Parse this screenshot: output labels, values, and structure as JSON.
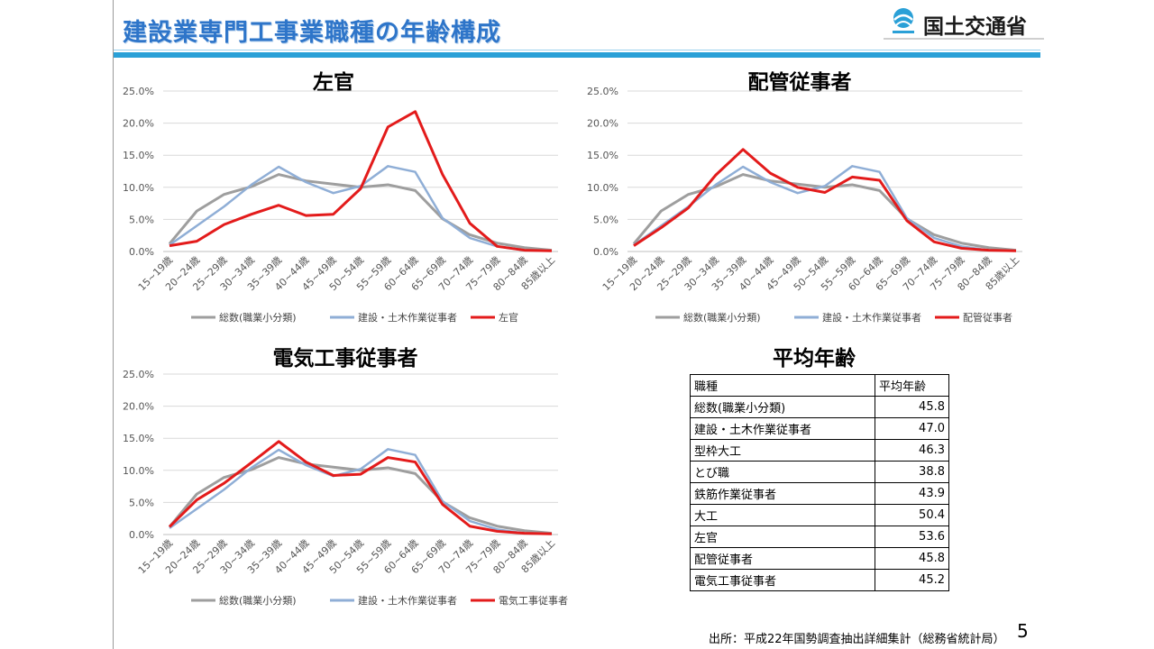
{
  "header": {
    "title": "建設業専門工事業職種の年齢構成",
    "logo_text": "国土交通省"
  },
  "colors": {
    "total": "#9e9e9e",
    "construction": "#8faed6",
    "occupation": "#e31b1b",
    "title_blue": "#2e75c9",
    "rule_blue": "#2aa0d7"
  },
  "chart_data": [
    {
      "type": "line",
      "title": "左官",
      "categories": [
        "15~19歳",
        "20~24歳",
        "25~29歳",
        "30~34歳",
        "35~39歳",
        "40~44歳",
        "45~49歳",
        "50~54歳",
        "55~59歳",
        "60~64歳",
        "65~69歳",
        "70~74歳",
        "75~79歳",
        "80~84歳",
        "85歳以上"
      ],
      "yticks": [
        "0.0%",
        "5.0%",
        "10.0%",
        "15.0%",
        "20.0%",
        "25.0%"
      ],
      "ylim": [
        0,
        25
      ],
      "series": [
        {
          "name": "総数(職業小分類)",
          "values": [
            1.2,
            6.3,
            8.9,
            10.1,
            12.0,
            11.0,
            10.5,
            10.0,
            10.4,
            9.5,
            5.1,
            2.6,
            1.3,
            0.6,
            0.2
          ]
        },
        {
          "name": "建設・土木作業従事者",
          "values": [
            1.0,
            4.0,
            7.0,
            10.4,
            13.2,
            10.8,
            9.1,
            10.2,
            13.3,
            12.4,
            5.2,
            2.1,
            0.8,
            0.2,
            0.1
          ]
        },
        {
          "name": "左官",
          "values": [
            0.9,
            1.6,
            4.2,
            5.8,
            7.2,
            5.6,
            5.8,
            9.8,
            19.4,
            21.8,
            12.0,
            4.4,
            0.8,
            0.2,
            0.1
          ]
        }
      ]
    },
    {
      "type": "line",
      "title": "配管従事者",
      "categories": [
        "15~19歳",
        "20~24歳",
        "25~29歳",
        "30~34歳",
        "35~39歳",
        "40~44歳",
        "45~49歳",
        "50~54歳",
        "55~59歳",
        "60~64歳",
        "65~69歳",
        "70~74歳",
        "75~79歳",
        "80~84歳",
        "85歳以上"
      ],
      "yticks": [
        "0.0%",
        "5.0%",
        "10.0%",
        "15.0%",
        "20.0%",
        "25.0%"
      ],
      "ylim": [
        0,
        25
      ],
      "series": [
        {
          "name": "総数(職業小分類)",
          "values": [
            1.2,
            6.3,
            8.9,
            10.1,
            12.0,
            11.0,
            10.5,
            10.0,
            10.4,
            9.5,
            5.1,
            2.6,
            1.3,
            0.6,
            0.2
          ]
        },
        {
          "name": "建設・土木作業従事者",
          "values": [
            1.0,
            4.0,
            7.0,
            10.4,
            13.2,
            10.8,
            9.1,
            10.2,
            13.3,
            12.4,
            5.2,
            2.1,
            0.8,
            0.2,
            0.1
          ]
        },
        {
          "name": "配管従事者",
          "values": [
            0.9,
            3.7,
            6.8,
            11.9,
            15.9,
            12.2,
            10.0,
            9.2,
            11.6,
            11.1,
            4.8,
            1.5,
            0.5,
            0.2,
            0.1
          ]
        }
      ]
    },
    {
      "type": "line",
      "title": "電気工事従事者",
      "categories": [
        "15~19歳",
        "20~24歳",
        "25~29歳",
        "30~34歳",
        "35~39歳",
        "40~44歳",
        "45~49歳",
        "50~54歳",
        "55~59歳",
        "60~64歳",
        "65~69歳",
        "70~74歳",
        "75~79歳",
        "80~84歳",
        "85歳以上"
      ],
      "yticks": [
        "0.0%",
        "5.0%",
        "10.0%",
        "15.0%",
        "20.0%",
        "25.0%"
      ],
      "ylim": [
        0,
        25
      ],
      "series": [
        {
          "name": "総数(職業小分類)",
          "values": [
            1.2,
            6.3,
            8.9,
            10.1,
            12.0,
            11.0,
            10.5,
            10.0,
            10.4,
            9.5,
            5.1,
            2.6,
            1.3,
            0.6,
            0.2
          ]
        },
        {
          "name": "建設・土木作業従事者",
          "values": [
            1.0,
            4.0,
            7.0,
            10.4,
            13.2,
            10.8,
            9.1,
            10.2,
            13.3,
            12.4,
            5.2,
            2.1,
            0.8,
            0.2,
            0.1
          ]
        },
        {
          "name": "電気工事従事者",
          "values": [
            1.2,
            5.4,
            8.0,
            11.2,
            14.5,
            11.3,
            9.2,
            9.4,
            12.0,
            11.3,
            4.7,
            1.3,
            0.5,
            0.2,
            0.1
          ]
        }
      ]
    },
    {
      "type": "table",
      "title": "平均年齢",
      "header": [
        "職種",
        "平均年齢"
      ],
      "rows": [
        [
          "総数(職業小分類)",
          "45.8"
        ],
        [
          "建設・土木作業従事者",
          "47.0"
        ],
        [
          "型枠大工",
          "46.3"
        ],
        [
          "とび職",
          "38.8"
        ],
        [
          "鉄筋作業従事者",
          "43.9"
        ],
        [
          "大工",
          "50.4"
        ],
        [
          "左官",
          "53.6"
        ],
        [
          "配管従事者",
          "45.8"
        ],
        [
          "電気工事従事者",
          "45.2"
        ]
      ]
    }
  ],
  "footer": {
    "source": "出所：平成22年国勢調査抽出詳細集計（総務省統計局）",
    "page_number": "5"
  }
}
